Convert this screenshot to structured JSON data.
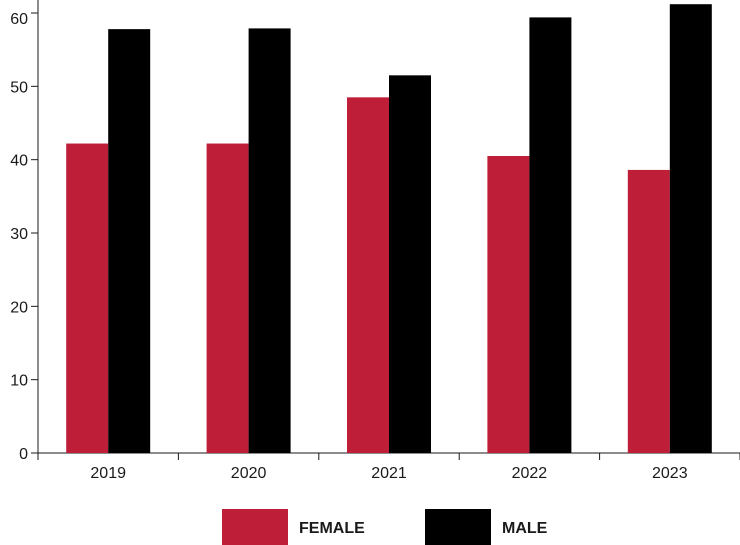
{
  "chart_data": {
    "type": "bar",
    "title": "",
    "xlabel": "",
    "ylabel": "",
    "categories": [
      "2019",
      "2020",
      "2021",
      "2022",
      "2023"
    ],
    "series": [
      {
        "name": "FEMALE",
        "color": "#be1e37",
        "values": [
          42.2,
          42.2,
          48.5,
          40.5,
          38.6
        ]
      },
      {
        "name": "MALE",
        "color": "#000000",
        "values": [
          57.8,
          57.9,
          51.5,
          59.4,
          61.2
        ]
      }
    ],
    "ylim": [
      0,
      60
    ],
    "yticks": [
      "0",
      "10",
      "20",
      "30",
      "40",
      "50",
      "60"
    ],
    "grid": false,
    "legend_position": "bottom-center"
  }
}
